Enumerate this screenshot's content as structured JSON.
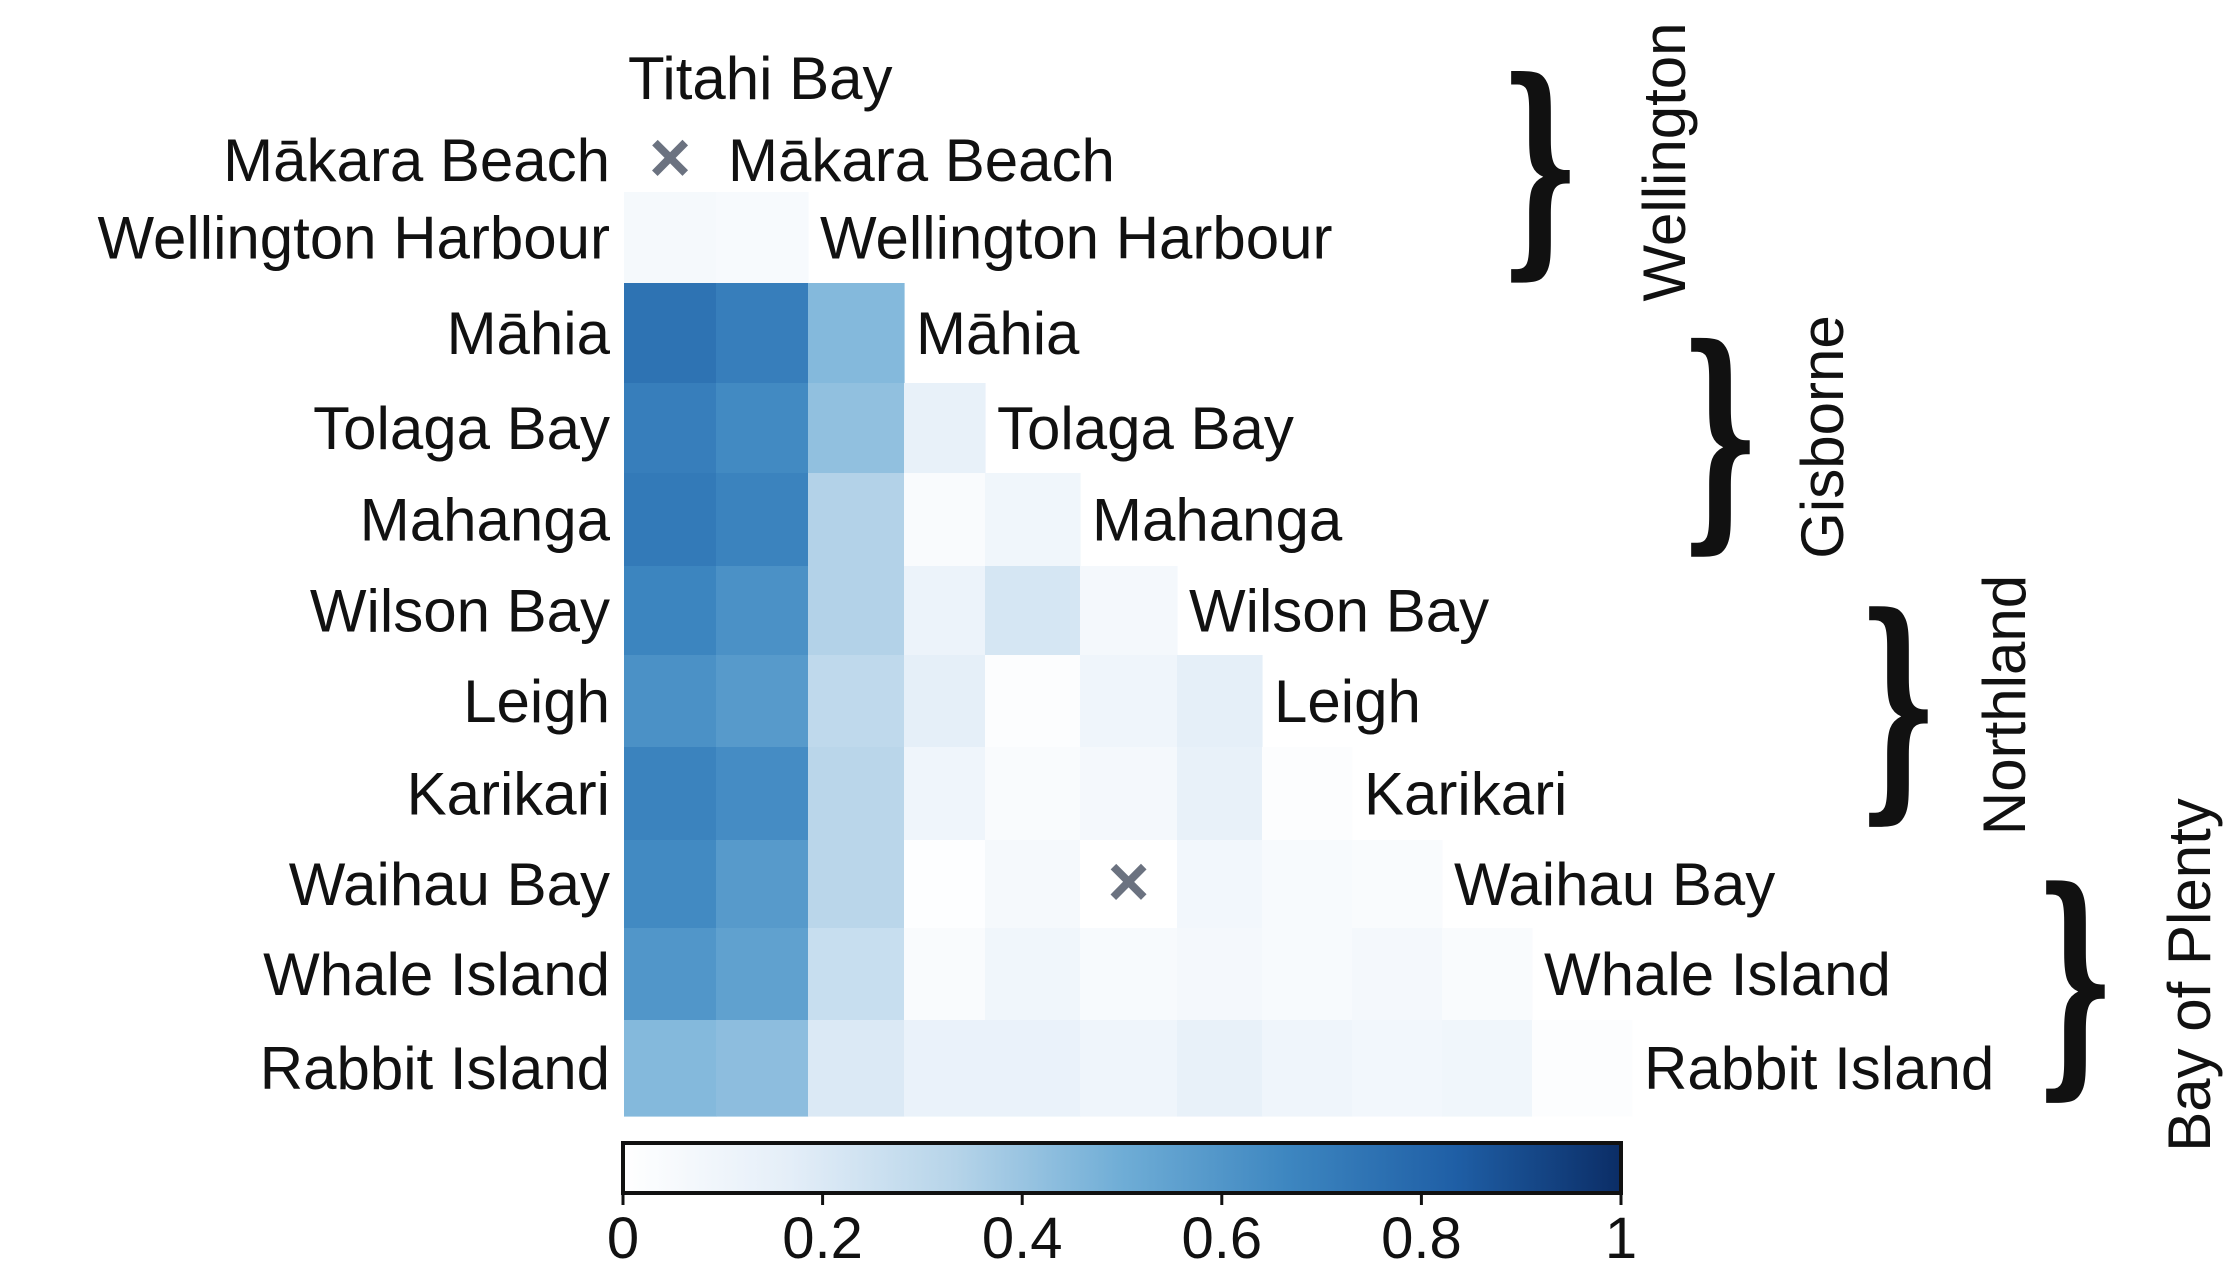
{
  "chart_data": {
    "type": "heatmap",
    "matrix_shape": "lower-triangular",
    "sites": [
      "Titahi Bay",
      "Mākara Beach",
      "Wellington Harbour",
      "Māhia",
      "Tolaga Bay",
      "Mahanga",
      "Wilson Bay",
      "Leigh",
      "Karikari",
      "Waihau Bay",
      "Whale Island",
      "Rabbit Island"
    ],
    "row_labels": [
      "Mākara Beach",
      "Wellington Harbour",
      "Māhia",
      "Tolaga Bay",
      "Mahanga",
      "Wilson Bay",
      "Leigh",
      "Karikari",
      "Waihau Bay",
      "Whale Island",
      "Rabbit Island"
    ],
    "values": [
      [
        null
      ],
      [
        0.06,
        0.05
      ],
      [
        0.75,
        0.7,
        0.45
      ],
      [
        0.7,
        0.65,
        0.42,
        0.14
      ],
      [
        0.72,
        0.68,
        0.34,
        0.04,
        0.09
      ],
      [
        0.67,
        0.62,
        0.34,
        0.12,
        0.22,
        0.07
      ],
      [
        0.62,
        0.58,
        0.3,
        0.16,
        0.02,
        0.1,
        0.16
      ],
      [
        0.68,
        0.64,
        0.32,
        0.1,
        0.04,
        0.07,
        0.14,
        0.02
      ],
      [
        0.65,
        0.58,
        0.32,
        0.01,
        0.06,
        null,
        0.08,
        0.05,
        0.04
      ],
      [
        0.6,
        0.55,
        0.27,
        0.04,
        0.09,
        0.05,
        0.07,
        0.05,
        0.07,
        0.04
      ],
      [
        0.45,
        0.43,
        0.2,
        0.13,
        0.13,
        0.1,
        0.14,
        0.1,
        0.08,
        0.09,
        0.02
      ]
    ],
    "not_significant_marker": "×",
    "colorbar": {
      "min": 0,
      "max": 1,
      "ticks": [
        "0",
        "0.2",
        "0.4",
        "0.6",
        "0.8",
        "1"
      ],
      "colors": [
        "#ffffff",
        "#e4eef8",
        "#b6d4e9",
        "#6fadd6",
        "#3d86c0",
        "#1f5fa6",
        "#0b2d66"
      ]
    },
    "region_groups": [
      {
        "name": "Wellington",
        "sites": [
          "Titahi Bay",
          "Mākara Beach",
          "Wellington Harbour"
        ]
      },
      {
        "name": "Gisborne",
        "sites": [
          "Māhia",
          "Tolaga Bay",
          "Mahanga"
        ]
      },
      {
        "name": "Northland",
        "sites": [
          "Wilson Bay",
          "Leigh",
          "Karikari"
        ]
      },
      {
        "name": "Bay of Plenty",
        "sites": [
          "Waihau Bay",
          "Whale Island",
          "Rabbit Island"
        ]
      }
    ],
    "brace_glyph": "}",
    "marker_color": "#6b7280"
  }
}
